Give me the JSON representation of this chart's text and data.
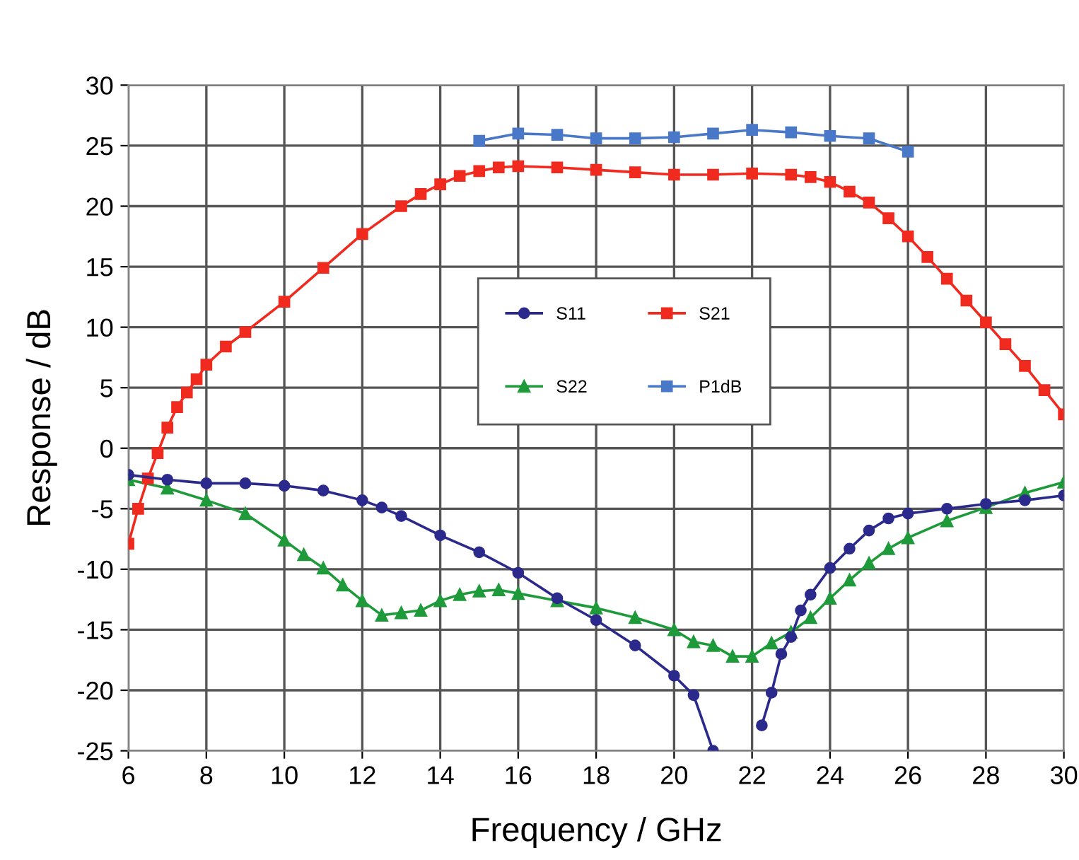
{
  "chart_data": {
    "type": "line",
    "xlabel": "Frequency / GHz",
    "ylabel": "Response / dB",
    "xlim": [
      6,
      30
    ],
    "xticks": [
      6,
      8,
      10,
      12,
      14,
      16,
      18,
      20,
      22,
      24,
      26,
      28,
      30
    ],
    "ylim": [
      -25,
      30
    ],
    "yticks": [
      -25,
      -20,
      -15,
      -10,
      -5,
      0,
      5,
      10,
      15,
      20,
      25,
      30
    ],
    "grid": true,
    "legend": "center",
    "series": [
      {
        "name": "S11",
        "color": "#2b2a8c",
        "marker": "circle",
        "x": [
          6,
          7,
          8,
          9,
          10,
          11,
          12,
          12.5,
          13,
          14,
          15,
          16,
          17,
          18,
          19,
          20,
          20.5,
          21,
          21.75,
          22.25,
          22.5,
          22.75,
          23,
          23.25,
          23.5,
          24,
          24.5,
          25,
          25.5,
          26,
          27,
          28,
          29,
          30
        ],
        "values": [
          -2.2,
          -2.6,
          -2.9,
          -2.9,
          -3.1,
          -3.5,
          -4.3,
          -4.9,
          -5.6,
          -7.2,
          -8.6,
          -10.3,
          -12.4,
          -14.2,
          -16.3,
          -18.8,
          -20.4,
          -25,
          null,
          -22.9,
          -20.2,
          -17,
          -15.6,
          -13.4,
          -12.1,
          -9.9,
          -8.3,
          -6.8,
          -5.8,
          -5.4,
          -5.0,
          -4.6,
          -4.3,
          -3.9
        ]
      },
      {
        "name": "S21",
        "color": "#f02a1e",
        "marker": "square",
        "x": [
          6,
          6.25,
          6.5,
          6.75,
          7,
          7.25,
          7.5,
          7.75,
          8,
          8.5,
          9,
          10,
          11,
          12,
          13,
          13.5,
          14,
          14.5,
          15,
          15.5,
          16,
          17,
          18,
          19,
          20,
          21,
          22,
          23,
          23.5,
          24,
          24.5,
          25,
          25.5,
          26,
          26.5,
          27,
          27.5,
          28,
          28.5,
          29,
          29.5,
          30
        ],
        "values": [
          -7.9,
          -5,
          -2.5,
          -0.4,
          1.7,
          3.4,
          4.6,
          5.7,
          6.9,
          8.4,
          9.6,
          12.1,
          14.9,
          17.7,
          20.0,
          21.0,
          21.8,
          22.5,
          22.9,
          23.2,
          23.3,
          23.2,
          23.0,
          22.8,
          22.6,
          22.6,
          22.7,
          22.6,
          22.4,
          22.0,
          21.2,
          20.3,
          19.0,
          17.5,
          15.8,
          14.0,
          12.2,
          10.4,
          8.6,
          6.8,
          4.8,
          2.8
        ]
      },
      {
        "name": "S22",
        "color": "#1f9a3a",
        "marker": "triangle",
        "x": [
          6,
          7,
          8,
          9,
          10,
          10.5,
          11,
          11.5,
          12,
          12.5,
          13,
          13.5,
          14,
          14.5,
          15,
          15.5,
          16,
          17,
          18,
          19,
          20,
          20.5,
          21,
          21.5,
          22,
          22.5,
          23,
          23.5,
          24,
          24.5,
          25,
          25.5,
          26,
          27,
          28,
          29,
          30
        ],
        "values": [
          -2.6,
          -3.3,
          -4.3,
          -5.4,
          -7.6,
          -8.8,
          -9.9,
          -11.3,
          -12.6,
          -13.8,
          -13.6,
          -13.4,
          -12.6,
          -12.1,
          -11.8,
          -11.7,
          -12.0,
          -12.6,
          -13.2,
          -14.0,
          -15.0,
          -16.0,
          -16.3,
          -17.2,
          -17.2,
          -16.1,
          -15.2,
          -14.0,
          -12.4,
          -10.9,
          -9.5,
          -8.3,
          -7.4,
          -6.0,
          -4.9,
          -3.7,
          -2.8
        ]
      },
      {
        "name": "P1dB",
        "color": "#4a78c8",
        "marker": "square",
        "x": [
          15,
          16,
          17,
          18,
          19,
          20,
          21,
          22,
          23,
          24,
          25,
          26
        ],
        "values": [
          25.4,
          26.0,
          25.9,
          25.6,
          25.6,
          25.7,
          26.0,
          26.3,
          26.1,
          25.8,
          25.6,
          24.5
        ]
      }
    ]
  }
}
